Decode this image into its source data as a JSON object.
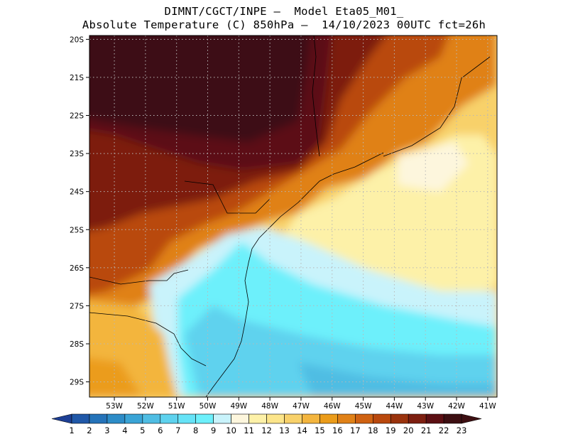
{
  "header": {
    "line1": "DIMNT/CGCT/INPE –  Model Eta05_M01_",
    "line2": "Absolute Temperature (C) 850hPa –  14/10/2023 00UTC fct=26h"
  },
  "map": {
    "lat_ticks": [
      "20S",
      "21S",
      "22S",
      "23S",
      "24S",
      "25S",
      "26S",
      "27S",
      "28S",
      "29S"
    ],
    "lon_ticks": [
      "53W",
      "52W",
      "51W",
      "50W",
      "49W",
      "48W",
      "47W",
      "46W",
      "45W",
      "44W",
      "43W",
      "42W",
      "41W"
    ],
    "lat_range": [
      -29.4,
      -19.9
    ],
    "lon_range": [
      -53.8,
      -40.7
    ],
    "grid": "dotted"
  },
  "colorbar": {
    "labels": [
      "1",
      "2",
      "3",
      "4",
      "5",
      "6",
      "7",
      "8",
      "9",
      "10",
      "11",
      "12",
      "13",
      "14",
      "15",
      "16",
      "17",
      "18",
      "19",
      "20",
      "21",
      "22",
      "23"
    ],
    "colors": [
      "#1d3f95",
      "#2058a8",
      "#2573b9",
      "#2d8cc7",
      "#3aa4d6",
      "#4fbde3",
      "#5ed2ee",
      "#66e3f7",
      "#6df0fb",
      "#c9f3fb",
      "#fdf6dd",
      "#fdf1a8",
      "#fce58a",
      "#f8d16a",
      "#f3b53e",
      "#eb9c1a",
      "#e08117",
      "#cf6212",
      "#b9480d",
      "#9a330d",
      "#7d1f10",
      "#5c0f13",
      "#3d0f12"
    ]
  }
}
